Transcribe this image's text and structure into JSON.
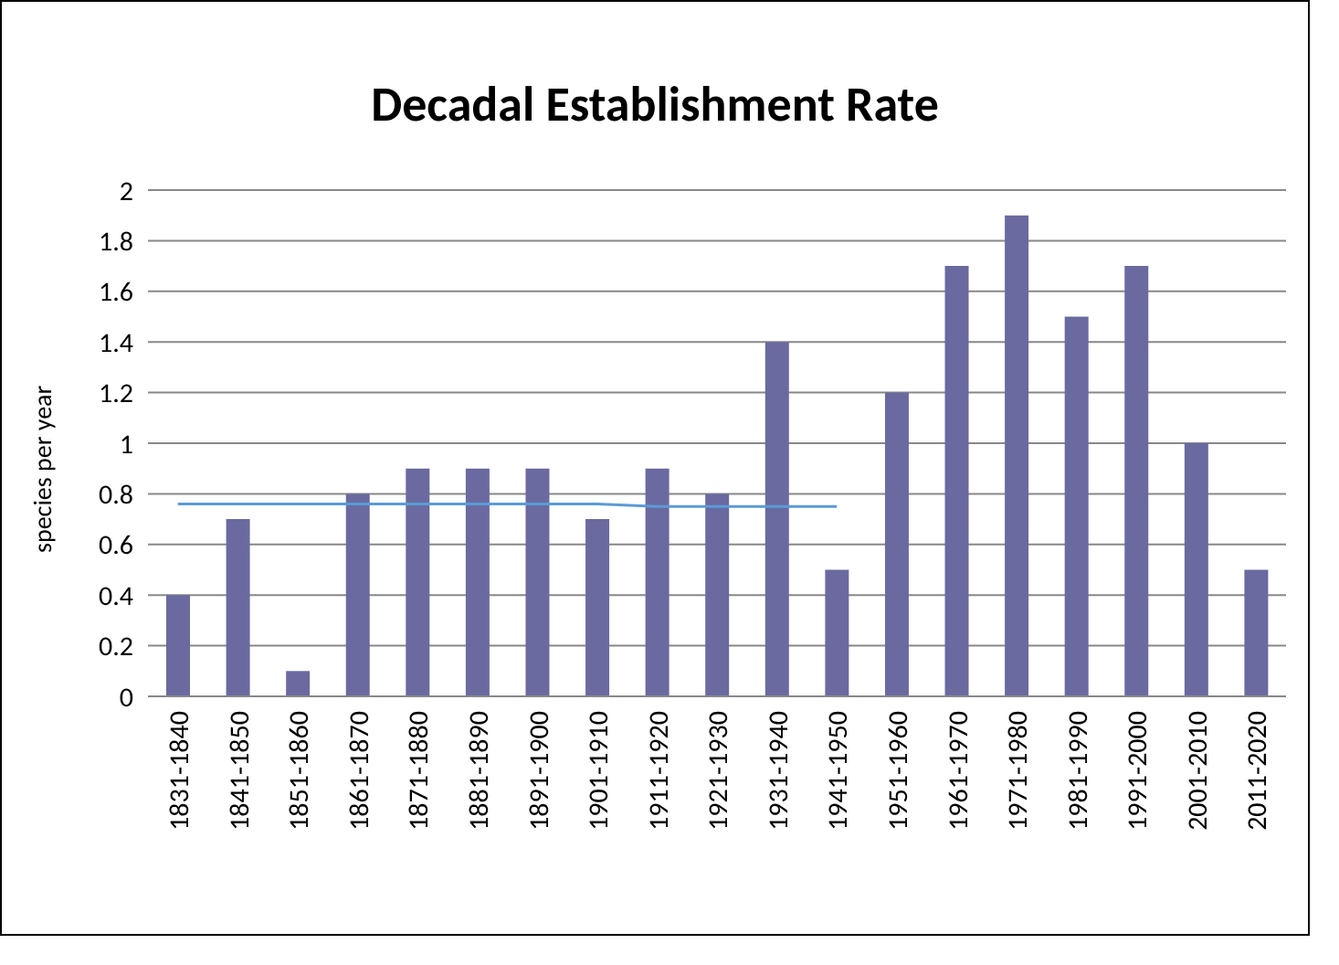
{
  "chart_data": {
    "type": "bar",
    "title": "Decadal Establishment Rate",
    "ylabel": "species per year",
    "categories": [
      "1831-1840",
      "1841-1850",
      "1851-1860",
      "1861-1870",
      "1871-1880",
      "1881-1890",
      "1891-1900",
      "1901-1910",
      "1911-1920",
      "1921-1930",
      "1931-1940",
      "1941-1950",
      "1951-1960",
      "1961-1970",
      "1971-1980",
      "1981-1990",
      "1991-2000",
      "2001-2010",
      "2011-2020"
    ],
    "series": [
      {
        "color": "#6a6aa0",
        "values": [
          0.4,
          0.7,
          0.1,
          0.8,
          0.9,
          0.9,
          0.9,
          0.7,
          0.9,
          0.8,
          1.4,
          0.5,
          1.2,
          1.7,
          1.9,
          1.5,
          1.7,
          1.0,
          0.5
        ]
      },
      {
        "type": "line",
        "color": "#5b9bd5",
        "values": [
          0.76,
          0.76,
          0.76,
          0.76,
          0.76,
          0.76,
          0.76,
          0.76,
          0.75,
          0.75,
          0.75,
          0.75,
          null,
          null,
          null,
          null,
          null,
          null,
          null
        ]
      }
    ],
    "ylim": [
      0,
      2
    ],
    "yticks": [
      0,
      0.2,
      0.4,
      0.6,
      0.8,
      1,
      1.2,
      1.4,
      1.6,
      1.8,
      2
    ],
    "grid": "y",
    "legend": false,
    "marker": "none",
    "line_style": "solid"
  }
}
